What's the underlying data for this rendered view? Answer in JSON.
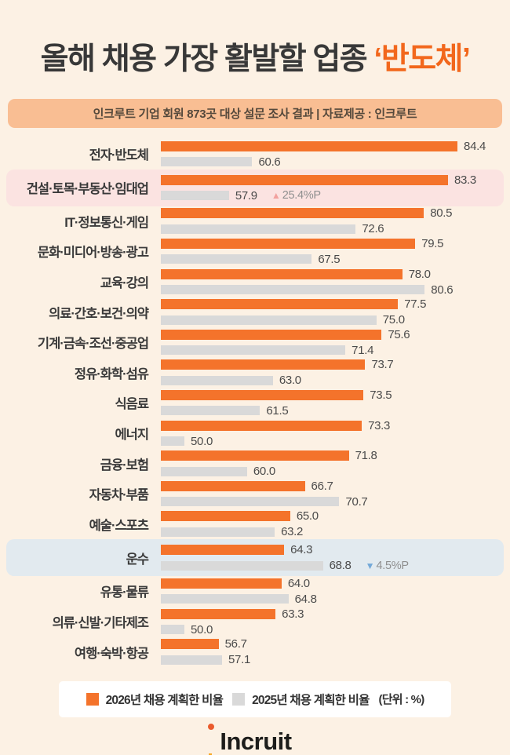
{
  "title": {
    "prefix": "올해 채용 가장 활발할 업종 ",
    "accent": "‘반도체’"
  },
  "subtitle": "인크루트 기업 회원 873곳 대상 설문 조사 결과 | 자료제공 : 인크루트",
  "legend": {
    "series1_label": "2026년 채용 계획한 비율",
    "series2_label": "2025년 채용 계획한 비율",
    "unit_note": "(단위 : %)"
  },
  "logo": {
    "text": "Incruit"
  },
  "icons": {
    "up_triangle": "▲",
    "down_triangle": "▼",
    "logo_dot": "incruit-dot",
    "logo_l": "incruit-l"
  },
  "colors": {
    "background": "#FCF1E4",
    "bar_2026": "#F4732B",
    "bar_2025": "#D9D9D9",
    "title_accent": "#F2671C",
    "subtitle_bg": "#F9BE93",
    "highlight_up_bg": "#FBE3E1",
    "highlight_down_bg": "#E2EAEF",
    "delta_up": "#F2A19E",
    "delta_down": "#74A9D8",
    "logo_dot": "#EA5B2D",
    "logo_l": "#F7A823"
  },
  "chart_data": {
    "type": "bar",
    "orientation": "horizontal",
    "title": "올해 채용 가장 활발할 업종 ‘반도체’",
    "unit": "%",
    "xlim": [
      50,
      85
    ],
    "grid": false,
    "legend_position": "bottom",
    "categories": [
      "전자·반도체",
      "건설·토목·부동산·임대업",
      "IT·정보통신·게임",
      "문화·미디어·방송·광고",
      "교육·강의",
      "의료·간호·보건·의약",
      "기계·금속·조선·중공업",
      "정유·화학·섬유",
      "식음료",
      "에너지",
      "금융·보험",
      "자동차·부품",
      "예술·스포츠",
      "운수",
      "유통·물류",
      "의류·신발·기타제조",
      "여행·숙박·항공"
    ],
    "series": [
      {
        "name": "2026년 채용 계획한 비율",
        "values": [
          84.4,
          83.3,
          80.5,
          79.5,
          78.0,
          77.5,
          75.6,
          73.7,
          73.5,
          73.3,
          71.8,
          66.7,
          65.0,
          64.3,
          64.0,
          63.3,
          56.7
        ]
      },
      {
        "name": "2025년 채용 계획한 비율",
        "values": [
          60.6,
          57.9,
          72.6,
          67.5,
          80.6,
          75.0,
          71.4,
          63.0,
          61.5,
          50.0,
          60.0,
          70.7,
          63.2,
          68.8,
          64.8,
          50.0,
          57.1
        ]
      }
    ],
    "annotations": [
      {
        "index": 1,
        "category": "건설·토목·부동산·임대업",
        "direction": "up",
        "text": "25.4%P",
        "highlight": "pink"
      },
      {
        "index": 13,
        "category": "운수",
        "direction": "down",
        "text": "4.5%P",
        "highlight": "blue"
      }
    ]
  }
}
